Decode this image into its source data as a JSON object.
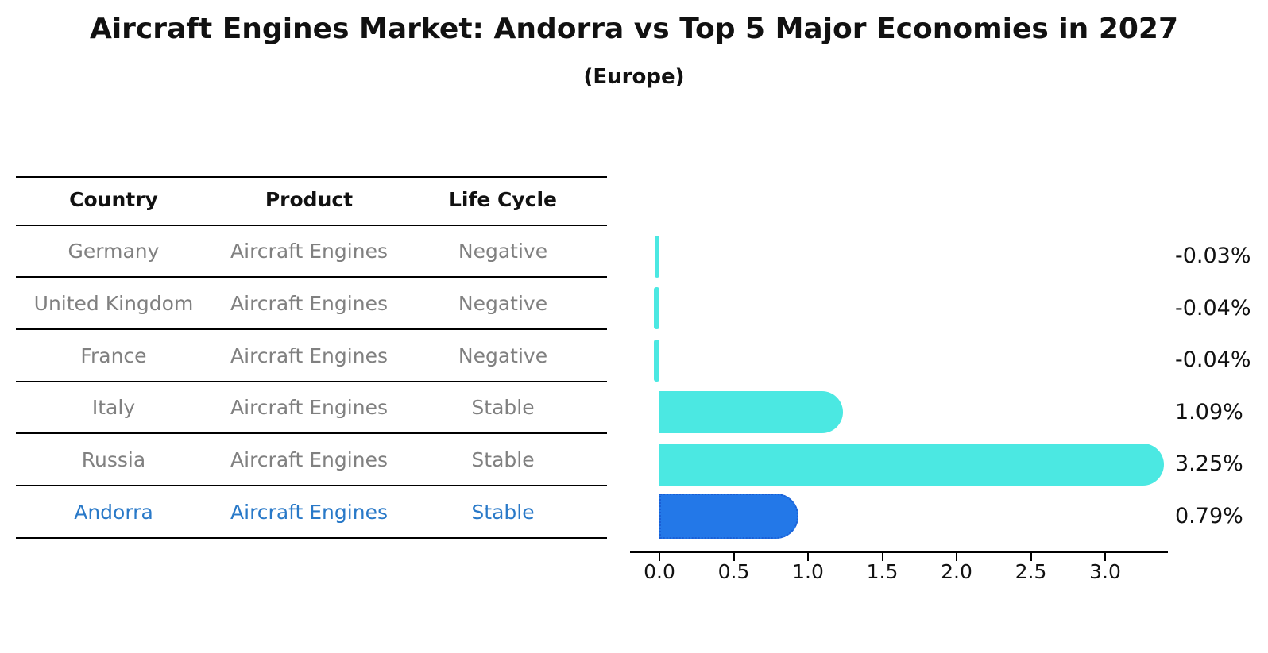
{
  "title": "Aircraft Engines Market: Andorra vs Top 5 Major Economies in 2027",
  "subtitle": "(Europe)",
  "table": {
    "headers": [
      "Country",
      "Product",
      "Life Cycle"
    ],
    "rows": [
      {
        "country": "Germany",
        "product": "Aircraft Engines",
        "life_cycle": "Negative",
        "highlight": false
      },
      {
        "country": "United Kingdom",
        "product": "Aircraft Engines",
        "life_cycle": "Negative",
        "highlight": false
      },
      {
        "country": "France",
        "product": "Aircraft Engines",
        "life_cycle": "Negative",
        "highlight": false
      },
      {
        "country": "Italy",
        "product": "Aircraft Engines",
        "life_cycle": "Stable",
        "highlight": false
      },
      {
        "country": "Russia",
        "product": "Aircraft Engines",
        "life_cycle": "Stable",
        "highlight": false
      },
      {
        "country": "Andorra",
        "product": "Aircraft Engines",
        "life_cycle": "Stable",
        "highlight": true
      }
    ]
  },
  "chart_data": {
    "type": "bar",
    "orientation": "horizontal",
    "title": "Aircraft Engines Market: Andorra vs Top 5 Major Economies in 2027 (Europe)",
    "categories": [
      "Germany",
      "United Kingdom",
      "France",
      "Italy",
      "Russia",
      "Andorra"
    ],
    "values": [
      -0.03,
      -0.04,
      -0.04,
      1.09,
      3.25,
      0.79
    ],
    "value_labels": [
      "-0.03%",
      "-0.04%",
      "-0.04%",
      "1.09%",
      "3.25%",
      "0.79%"
    ],
    "unit": "percent",
    "x_tick_labels": [
      "0.0",
      "0.5",
      "1.0",
      "1.5",
      "2.0",
      "2.5",
      "3.0"
    ],
    "x_tick_values": [
      0.0,
      0.5,
      1.0,
      1.5,
      2.0,
      2.5,
      3.0
    ],
    "xlim": [
      -0.2,
      3.42
    ],
    "grid": false,
    "legend": false,
    "highlight_category": "Andorra"
  },
  "colors": {
    "bar_cyan": "#4BE8E2",
    "bar_highlight_blue": "#2378E8",
    "bar_highlight_border": "#1A5FD6",
    "table_text_gray": "#808080",
    "highlight_text_blue": "#2979C8",
    "line_black": "#000000",
    "text_black": "#111111",
    "background": "#FFFFFF"
  }
}
